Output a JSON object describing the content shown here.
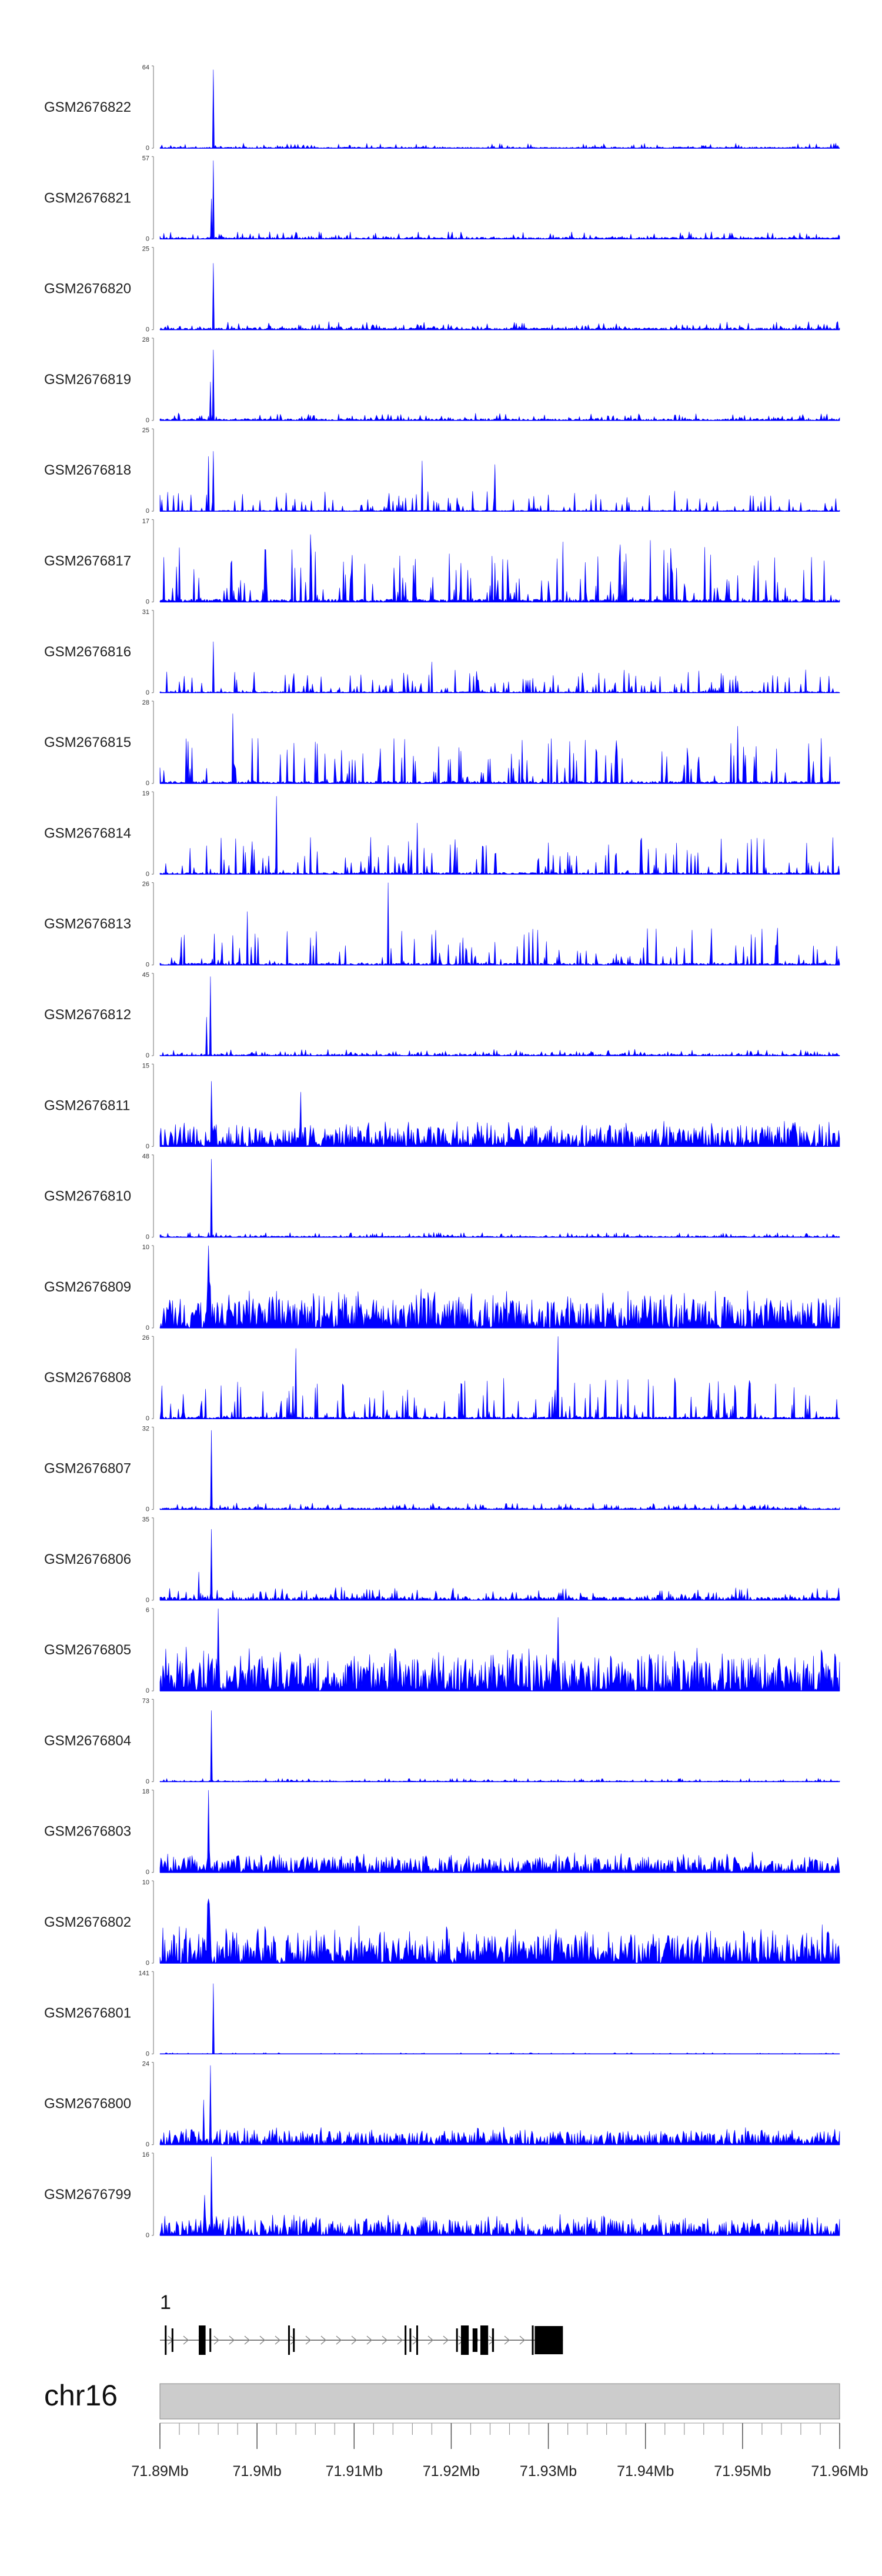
{
  "chart_data": {
    "type": "area",
    "genome": {
      "chromosome": "chr16",
      "start": 71890000,
      "end": 71960000
    },
    "signal_color": "#0000ff",
    "tracks": [
      {
        "name": "GSM2676822",
        "ymax": "64",
        "ymin": "0",
        "style": "peak",
        "noise": 0.06,
        "peaks": [
          [
            71895500,
            1.0,
            0.00018
          ]
        ],
        "seed": 11
      },
      {
        "name": "GSM2676821",
        "ymax": "57",
        "ymin": "0",
        "style": "peak",
        "noise": 0.09,
        "peaks": [
          [
            71895500,
            1.0,
            0.00018
          ],
          [
            71895300,
            0.55,
            0.00012
          ]
        ],
        "seed": 12
      },
      {
        "name": "GSM2676820",
        "ymax": "25",
        "ymin": "0",
        "style": "peak",
        "noise": 0.1,
        "peaks": [
          [
            71895500,
            1.0,
            0.0002
          ]
        ],
        "seed": 13
      },
      {
        "name": "GSM2676819",
        "ymax": "28",
        "ymin": "0",
        "style": "peak",
        "noise": 0.09,
        "peaks": [
          [
            71895500,
            1.0,
            0.00022
          ],
          [
            71895200,
            0.4,
            0.00015
          ]
        ],
        "seed": 14
      },
      {
        "name": "GSM2676818",
        "ymax": "25",
        "ymin": "0",
        "style": "sparse",
        "noise": 0.25,
        "peaks": [
          [
            71895500,
            0.9,
            0.00015
          ],
          [
            71895000,
            0.7,
            0.00012
          ],
          [
            71924500,
            0.6,
            0.00012
          ],
          [
            71917000,
            0.5,
            0.0001
          ]
        ],
        "seed": 15
      },
      {
        "name": "GSM2676817",
        "ymax": "17",
        "ymin": "0",
        "style": "sparse",
        "noise": 0.7,
        "peaks": [
          [
            71905500,
            0.9,
            0.0001
          ],
          [
            71931500,
            0.8,
            0.0001
          ],
          [
            71940500,
            0.8,
            0.0001
          ]
        ],
        "seed": 16
      },
      {
        "name": "GSM2676816",
        "ymax": "31",
        "ymin": "0",
        "style": "sparse",
        "noise": 0.28,
        "peaks": [
          [
            71895500,
            0.8,
            0.00015
          ],
          [
            71918000,
            0.45,
            0.0001
          ]
        ],
        "seed": 17
      },
      {
        "name": "GSM2676815",
        "ymax": "28",
        "ymin": "0",
        "style": "sparse",
        "noise": 0.55,
        "peaks": [
          [
            71897500,
            0.95,
            0.0001
          ],
          [
            71906000,
            0.6,
            0.00012
          ],
          [
            71949500,
            0.75,
            0.0001
          ]
        ],
        "seed": 18
      },
      {
        "name": "GSM2676814",
        "ymax": "19",
        "ymin": "0",
        "style": "sparse",
        "noise": 0.45,
        "peaks": [
          [
            71902000,
            1.0,
            0.0001
          ],
          [
            71916500,
            0.75,
            0.0003
          ]
        ],
        "seed": 19
      },
      {
        "name": "GSM2676813",
        "ymax": "26",
        "ymin": "0",
        "style": "sparse",
        "noise": 0.45,
        "peaks": [
          [
            71913500,
            1.0,
            8e-05
          ],
          [
            71899000,
            0.75,
            0.0001
          ]
        ],
        "seed": 20
      },
      {
        "name": "GSM2676812",
        "ymax": "45",
        "ymin": "0",
        "style": "peak",
        "noise": 0.08,
        "peaks": [
          [
            71895200,
            1.0,
            0.00028
          ],
          [
            71894800,
            0.6,
            0.0002
          ]
        ],
        "seed": 21
      },
      {
        "name": "GSM2676811",
        "ymax": "15",
        "ymin": "0",
        "style": "dense",
        "noise": 0.32,
        "peaks": [
          [
            71895300,
            0.95,
            0.0005
          ],
          [
            71904500,
            0.65,
            0.0003
          ]
        ],
        "seed": 22
      },
      {
        "name": "GSM2676810",
        "ymax": "48",
        "ymin": "0",
        "style": "peak",
        "noise": 0.06,
        "peaks": [
          [
            71895300,
            1.0,
            0.0005
          ]
        ],
        "seed": 23
      },
      {
        "name": "GSM2676809",
        "ymax": "10",
        "ymin": "0",
        "style": "dense",
        "noise": 0.5,
        "peaks": [
          [
            71895000,
            0.9,
            0.0015
          ]
        ],
        "seed": 24
      },
      {
        "name": "GSM2676808",
        "ymax": "26",
        "ymin": "0",
        "style": "sparse",
        "noise": 0.5,
        "peaks": [
          [
            71904000,
            0.95,
            0.0001
          ],
          [
            71931000,
            0.8,
            0.0001
          ]
        ],
        "seed": 25
      },
      {
        "name": "GSM2676807",
        "ymax": "32",
        "ymin": "0",
        "style": "peak",
        "noise": 0.08,
        "peaks": [
          [
            71895300,
            1.0,
            0.0005
          ]
        ],
        "seed": 26
      },
      {
        "name": "GSM2676806",
        "ymax": "35",
        "ymin": "0",
        "style": "peak",
        "noise": 0.16,
        "peaks": [
          [
            71895300,
            1.0,
            0.0005
          ],
          [
            71894000,
            0.45,
            0.0004
          ]
        ],
        "seed": 27
      },
      {
        "name": "GSM2676805",
        "ymax": "6",
        "ymin": "0",
        "style": "dense",
        "noise": 0.55,
        "peaks": [
          [
            71896000,
            0.9,
            0.001
          ],
          [
            71931000,
            0.7,
            0.0006
          ]
        ],
        "seed": 28
      },
      {
        "name": "GSM2676804",
        "ymax": "73",
        "ymin": "0",
        "style": "peak",
        "noise": 0.04,
        "peaks": [
          [
            71895300,
            1.0,
            0.00045
          ]
        ],
        "seed": 29
      },
      {
        "name": "GSM2676803",
        "ymax": "18",
        "ymin": "0",
        "style": "dense",
        "noise": 0.26,
        "peaks": [
          [
            71895000,
            0.95,
            0.0008
          ]
        ],
        "seed": 30
      },
      {
        "name": "GSM2676802",
        "ymax": "10",
        "ymin": "0",
        "style": "dense",
        "noise": 0.48,
        "peaks": [
          [
            71895000,
            0.9,
            0.0015
          ]
        ],
        "seed": 31
      },
      {
        "name": "GSM2676801",
        "ymax": "141",
        "ymin": "0",
        "style": "peak",
        "noise": 0.015,
        "peaks": [
          [
            71895500,
            1.0,
            0.00025
          ]
        ],
        "seed": 32
      },
      {
        "name": "GSM2676800",
        "ymax": "24",
        "ymin": "0",
        "style": "dense",
        "noise": 0.22,
        "peaks": [
          [
            71895200,
            0.95,
            0.0006
          ],
          [
            71894500,
            0.55,
            0.0005
          ]
        ],
        "seed": 33
      },
      {
        "name": "GSM2676799",
        "ymax": "16",
        "ymin": "0",
        "style": "dense",
        "noise": 0.26,
        "peaks": [
          [
            71895300,
            0.95,
            0.0006
          ],
          [
            71894600,
            0.6,
            0.0005
          ]
        ],
        "seed": 34
      }
    ],
    "gene": {
      "label": "1",
      "start": 71890000,
      "end": 71931500,
      "strand": "+",
      "exons": [
        [
          71890500,
          71890650
        ],
        [
          71891200,
          71891350
        ],
        [
          71894000,
          71894700
        ],
        [
          71895100,
          71895250
        ],
        [
          71903200,
          71903350
        ],
        [
          71903700,
          71903850
        ],
        [
          71915200,
          71915350
        ],
        [
          71915700,
          71915850
        ],
        [
          71916400,
          71916550
        ],
        [
          71920500,
          71920650
        ],
        [
          71921000,
          71921800
        ],
        [
          71922200,
          71922700
        ],
        [
          71923000,
          71923800
        ],
        [
          71924200,
          71924400
        ],
        [
          71928300,
          71928450
        ],
        [
          71928600,
          71931500
        ]
      ]
    },
    "axis": {
      "major_ticks": [
        71890000,
        71900000,
        71910000,
        71920000,
        71930000,
        71940000,
        71950000,
        71960000
      ],
      "tick_labels": [
        "71.89Mb",
        "71.9Mb",
        "71.91Mb",
        "71.92Mb",
        "71.93Mb",
        "71.94Mb",
        "71.95Mb",
        "71.96Mb"
      ],
      "minor_tick_step": 2000
    }
  }
}
